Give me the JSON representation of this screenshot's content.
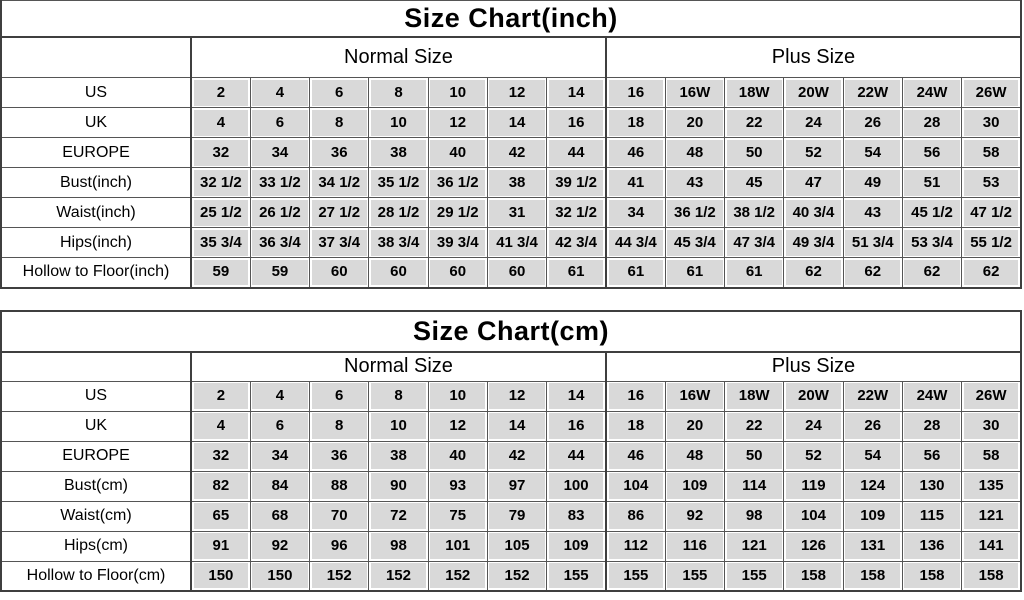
{
  "colors": {
    "background": "#ffffff",
    "cell_fill": "#d9d9d9",
    "grid_line": "#555555",
    "heavy_line": "#3f3f3f",
    "text": "#000000"
  },
  "chart_data": [
    {
      "type": "table",
      "title": "Size Chart(inch)",
      "column_groups": [
        {
          "label": "Normal Size",
          "span": 7
        },
        {
          "label": "Plus Size",
          "span": 7
        }
      ],
      "rows": [
        {
          "label": "US",
          "values": [
            "2",
            "4",
            "6",
            "8",
            "10",
            "12",
            "14",
            "16",
            "16W",
            "18W",
            "20W",
            "22W",
            "24W",
            "26W"
          ]
        },
        {
          "label": "UK",
          "values": [
            "4",
            "6",
            "8",
            "10",
            "12",
            "14",
            "16",
            "18",
            "20",
            "22",
            "24",
            "26",
            "28",
            "30"
          ]
        },
        {
          "label": "EUROPE",
          "values": [
            "32",
            "34",
            "36",
            "38",
            "40",
            "42",
            "44",
            "46",
            "48",
            "50",
            "52",
            "54",
            "56",
            "58"
          ]
        },
        {
          "label": "Bust(inch)",
          "values": [
            "32 1/2",
            "33 1/2",
            "34 1/2",
            "35 1/2",
            "36 1/2",
            "38",
            "39 1/2",
            "41",
            "43",
            "45",
            "47",
            "49",
            "51",
            "53"
          ]
        },
        {
          "label": "Waist(inch)",
          "values": [
            "25 1/2",
            "26 1/2",
            "27 1/2",
            "28 1/2",
            "29 1/2",
            "31",
            "32 1/2",
            "34",
            "36 1/2",
            "38 1/2",
            "40 3/4",
            "43",
            "45 1/2",
            "47 1/2"
          ]
        },
        {
          "label": "Hips(inch)",
          "values": [
            "35 3/4",
            "36 3/4",
            "37 3/4",
            "38 3/4",
            "39 3/4",
            "41 3/4",
            "42 3/4",
            "44 3/4",
            "45 3/4",
            "47 3/4",
            "49 3/4",
            "51 3/4",
            "53 3/4",
            "55 1/2"
          ]
        },
        {
          "label": "Hollow to Floor(inch)",
          "values": [
            "59",
            "59",
            "60",
            "60",
            "60",
            "60",
            "61",
            "61",
            "61",
            "61",
            "62",
            "62",
            "62",
            "62"
          ]
        }
      ]
    },
    {
      "type": "table",
      "title": "Size Chart(cm)",
      "column_groups": [
        {
          "label": "Normal Size",
          "span": 7
        },
        {
          "label": "Plus Size",
          "span": 7
        }
      ],
      "rows": [
        {
          "label": "US",
          "values": [
            "2",
            "4",
            "6",
            "8",
            "10",
            "12",
            "14",
            "16",
            "16W",
            "18W",
            "20W",
            "22W",
            "24W",
            "26W"
          ]
        },
        {
          "label": "UK",
          "values": [
            "4",
            "6",
            "8",
            "10",
            "12",
            "14",
            "16",
            "18",
            "20",
            "22",
            "24",
            "26",
            "28",
            "30"
          ]
        },
        {
          "label": "EUROPE",
          "values": [
            "32",
            "34",
            "36",
            "38",
            "40",
            "42",
            "44",
            "46",
            "48",
            "50",
            "52",
            "54",
            "56",
            "58"
          ]
        },
        {
          "label": "Bust(cm)",
          "values": [
            "82",
            "84",
            "88",
            "90",
            "93",
            "97",
            "100",
            "104",
            "109",
            "114",
            "119",
            "124",
            "130",
            "135"
          ]
        },
        {
          "label": "Waist(cm)",
          "values": [
            "65",
            "68",
            "70",
            "72",
            "75",
            "79",
            "83",
            "86",
            "92",
            "98",
            "104",
            "109",
            "115",
            "121"
          ]
        },
        {
          "label": "Hips(cm)",
          "values": [
            "91",
            "92",
            "96",
            "98",
            "101",
            "105",
            "109",
            "112",
            "116",
            "121",
            "126",
            "131",
            "136",
            "141"
          ]
        },
        {
          "label": "Hollow to Floor(cm)",
          "values": [
            "150",
            "150",
            "152",
            "152",
            "152",
            "152",
            "155",
            "155",
            "155",
            "155",
            "158",
            "158",
            "158",
            "158"
          ]
        }
      ]
    }
  ]
}
